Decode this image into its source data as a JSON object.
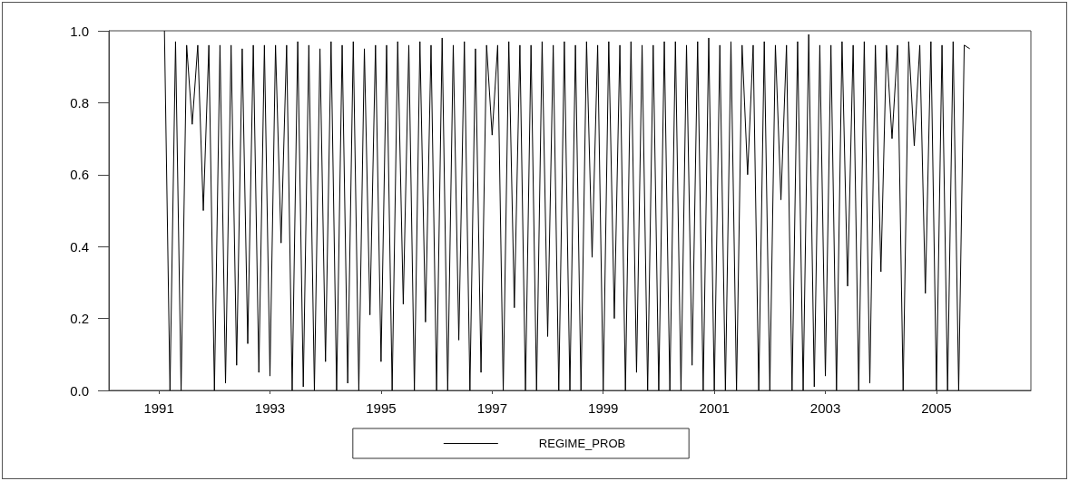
{
  "chart_data": {
    "type": "line",
    "x": [
      1991.1,
      1991.2,
      1991.3,
      1991.4,
      1991.5,
      1991.6,
      1991.7,
      1991.8,
      1991.9,
      1992.0,
      1992.1,
      1992.2,
      1992.3,
      1992.4,
      1992.5,
      1992.6,
      1992.7,
      1992.8,
      1992.9,
      1993.0,
      1993.1,
      1993.2,
      1993.3,
      1993.4,
      1993.5,
      1993.6,
      1993.7,
      1993.8,
      1993.9,
      1994.0,
      1994.1,
      1994.2,
      1994.3,
      1994.4,
      1994.5,
      1994.6,
      1994.7,
      1994.8,
      1994.9,
      1995.0,
      1995.1,
      1995.2,
      1995.3,
      1995.4,
      1995.5,
      1995.6,
      1995.7,
      1995.8,
      1995.9,
      1996.0,
      1996.1,
      1996.2,
      1996.3,
      1996.4,
      1996.5,
      1996.6,
      1996.7,
      1996.8,
      1996.9,
      1997.0,
      1997.1,
      1997.2,
      1997.3,
      1997.4,
      1997.5,
      1997.6,
      1997.7,
      1997.8,
      1997.9,
      1998.0,
      1998.1,
      1998.2,
      1998.3,
      1998.4,
      1998.5,
      1998.6,
      1998.7,
      1998.8,
      1998.9,
      1999.0,
      1999.1,
      1999.2,
      1999.3,
      1999.4,
      1999.5,
      1999.6,
      1999.7,
      1999.8,
      1999.9,
      2000.0,
      2000.1,
      2000.2,
      2000.3,
      2000.4,
      2000.5,
      2000.6,
      2000.7,
      2000.8,
      2000.9,
      2001.0,
      2001.1,
      2001.2,
      2001.3,
      2001.4,
      2001.5,
      2001.6,
      2001.7,
      2001.8,
      2001.9,
      2002.0,
      2002.1,
      2002.2,
      2002.3,
      2002.4,
      2002.5,
      2002.6,
      2002.7,
      2002.8,
      2002.9,
      2003.0,
      2003.1,
      2003.2,
      2003.3,
      2003.4,
      2003.5,
      2003.6,
      2003.7,
      2003.8,
      2003.9,
      2004.0,
      2004.1,
      2004.2,
      2004.3,
      2004.4,
      2004.5,
      2004.6,
      2004.7,
      2004.8,
      2004.9,
      2005.0,
      2005.1,
      2005.2,
      2005.3,
      2005.4,
      2005.5,
      2005.6
    ],
    "series": [
      {
        "name": "REGIME_PROB",
        "color": "#000000",
        "values": [
          1.0,
          0.0,
          0.97,
          0.0,
          0.96,
          0.74,
          0.96,
          0.5,
          0.96,
          0.0,
          0.96,
          0.02,
          0.96,
          0.07,
          0.95,
          0.13,
          0.96,
          0.05,
          0.96,
          0.04,
          0.96,
          0.41,
          0.96,
          0.0,
          0.97,
          0.01,
          0.96,
          0.0,
          0.95,
          0.08,
          0.97,
          0.0,
          0.96,
          0.02,
          0.97,
          0.0,
          0.95,
          0.21,
          0.96,
          0.08,
          0.96,
          0.0,
          0.97,
          0.24,
          0.96,
          0.0,
          0.97,
          0.19,
          0.96,
          0.0,
          0.98,
          0.0,
          0.96,
          0.14,
          0.97,
          0.0,
          0.95,
          0.05,
          0.96,
          0.71,
          0.96,
          0.0,
          0.97,
          0.23,
          0.96,
          0.0,
          0.96,
          0.0,
          0.97,
          0.15,
          0.96,
          0.0,
          0.97,
          0.0,
          0.96,
          0.0,
          0.97,
          0.37,
          0.96,
          0.0,
          0.97,
          0.2,
          0.96,
          0.0,
          0.97,
          0.05,
          0.96,
          0.0,
          0.96,
          0.0,
          0.97,
          0.0,
          0.97,
          0.0,
          0.96,
          0.07,
          0.97,
          0.0,
          0.98,
          0.0,
          0.96,
          0.0,
          0.97,
          0.0,
          0.96,
          0.6,
          0.96,
          0.0,
          0.97,
          0.0,
          0.96,
          0.53,
          0.96,
          0.0,
          0.97,
          0.0,
          0.99,
          0.01,
          0.96,
          0.04,
          0.96,
          0.0,
          0.97,
          0.29,
          0.96,
          0.0,
          0.97,
          0.02,
          0.96,
          0.33,
          0.96,
          0.7,
          0.96,
          0.0,
          0.97,
          0.68,
          0.96,
          0.27,
          0.97,
          0.0,
          0.96,
          0.0,
          0.97,
          0.0,
          0.96,
          0.95
        ]
      }
    ],
    "xlim": [
      1990.1,
      2006.7
    ],
    "xticks": [
      1991,
      1993,
      1995,
      1997,
      1999,
      2001,
      2003,
      2005
    ],
    "ylim": [
      0,
      1
    ],
    "yticks": [
      {
        "value": 0,
        "label": "0.0"
      },
      {
        "value": 0.2,
        "label": "0.2"
      },
      {
        "value": 0.4,
        "label": "0.4"
      },
      {
        "value": 0.6,
        "label": "0.6"
      },
      {
        "value": 0.8,
        "label": "0.8"
      },
      {
        "value": 1,
        "label": "1.0"
      }
    ],
    "legend": "bottom",
    "marker": "none",
    "line_style": "solid",
    "grid": false
  }
}
